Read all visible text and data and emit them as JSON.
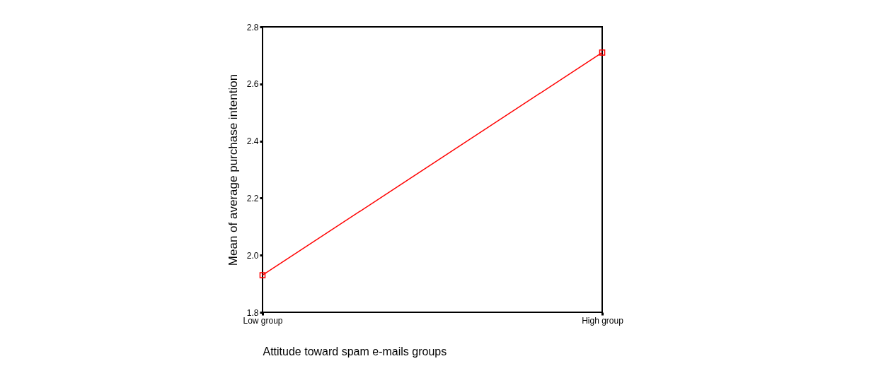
{
  "chart_data": {
    "type": "line",
    "xlabel": "Attitude toward spam e-mails groups",
    "ylabel": "Mean of average purchase intention",
    "categories": [
      "Low group",
      "High group"
    ],
    "series": [
      {
        "color": "#ff0000",
        "values": [
          1.93,
          2.71
        ]
      }
    ],
    "ylim": [
      1.8,
      2.8
    ],
    "yticks": [
      1.8,
      {
        "value": 2,
        "label": "2.0"
      },
      2.2,
      2.4,
      2.6,
      2.8
    ],
    "grid": false,
    "legend": false,
    "marker": "square",
    "line_style": "solid"
  }
}
